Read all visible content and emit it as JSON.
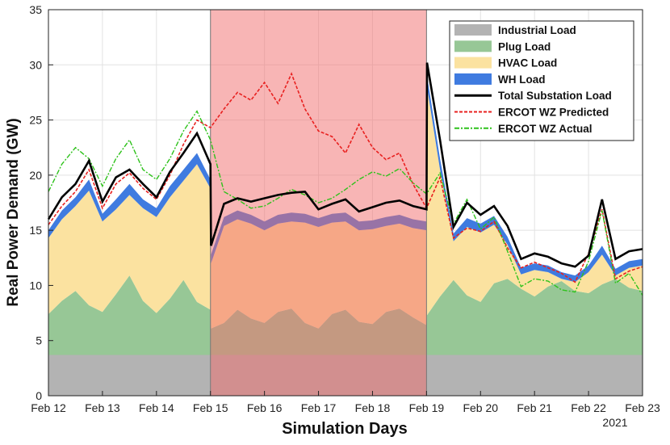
{
  "chart_data": {
    "type": "area",
    "ylabel": "Real Power Demand (GW)",
    "xlabel": "Simulation Days",
    "year_label": "2021",
    "xlim": [
      0,
      11
    ],
    "ylim": [
      0,
      35
    ],
    "grid": true,
    "legend_position": "top-right",
    "x_ticks": [
      {
        "x": 0,
        "label": "Feb 12"
      },
      {
        "x": 1,
        "label": "Feb 13"
      },
      {
        "x": 2,
        "label": "Feb 14"
      },
      {
        "x": 3,
        "label": "Feb 15"
      },
      {
        "x": 4,
        "label": "Feb 16"
      },
      {
        "x": 5,
        "label": "Feb 17"
      },
      {
        "x": 6,
        "label": "Feb 18"
      },
      {
        "x": 7,
        "label": "Feb 19"
      },
      {
        "x": 8,
        "label": "Feb 20"
      },
      {
        "x": 9,
        "label": "Feb 21"
      },
      {
        "x": 10,
        "label": "Feb 22"
      },
      {
        "x": 11,
        "label": "Feb 23"
      }
    ],
    "y_ticks": [
      0,
      5,
      10,
      15,
      20,
      25,
      30,
      35
    ],
    "highlight_band": {
      "x_start": 3,
      "x_end": 7,
      "color": "#f26b6b",
      "opacity": 0.5
    },
    "legend": [
      {
        "key": "industrial",
        "label": "Industrial Load",
        "style": "patch",
        "color": "#b3b3b3"
      },
      {
        "key": "plug",
        "label": "Plug Load",
        "style": "patch",
        "color": "#97c796"
      },
      {
        "key": "hvac",
        "label": "HVAC Load",
        "style": "patch",
        "color": "#fbe2a0"
      },
      {
        "key": "wh",
        "label": "WH Load",
        "style": "patch",
        "color": "#3f7be0"
      },
      {
        "key": "total",
        "label": "Total Substation Load",
        "style": "line",
        "color": "#000000",
        "dash": "none"
      },
      {
        "key": "pred",
        "label": "ERCOT WZ Predicted",
        "style": "line",
        "color": "#e8201f",
        "dash": "4,2"
      },
      {
        "key": "actual",
        "label": "ERCOT WZ Actual",
        "style": "line",
        "color": "#2ec21b",
        "dash": "6,2,2,2"
      }
    ],
    "series": [
      {
        "name": "Industrial Load",
        "constant": 3.7
      },
      {
        "name": "Plug Load (stack top)",
        "x": [
          0,
          0.25,
          0.5,
          0.75,
          1,
          1.25,
          1.5,
          1.75,
          2,
          2.25,
          2.5,
          2.75,
          3,
          3.01,
          3.25,
          3.5,
          3.75,
          4,
          4.25,
          4.5,
          4.75,
          5,
          5.25,
          5.5,
          5.75,
          6,
          6.25,
          6.5,
          6.75,
          7,
          7.01,
          7.25,
          7.5,
          7.75,
          8,
          8.25,
          8.5,
          8.75,
          9,
          9.25,
          9.5,
          9.75,
          10,
          10.25,
          10.5,
          10.75,
          11
        ],
        "values": [
          7.4,
          8.6,
          9.5,
          8.2,
          7.6,
          9.2,
          10.9,
          8.6,
          7.5,
          8.8,
          10.5,
          8.5,
          7.8,
          6.1,
          6.6,
          7.8,
          7.0,
          6.6,
          7.6,
          7.9,
          6.6,
          6.1,
          7.4,
          7.8,
          6.7,
          6.5,
          7.6,
          7.9,
          7.1,
          6.4,
          7.3,
          9.0,
          10.5,
          9.1,
          8.5,
          10.2,
          10.6,
          9.7,
          9.0,
          9.9,
          10.4,
          9.5,
          9.3,
          10.1,
          10.6,
          9.8,
          9.5
        ]
      },
      {
        "name": "HVAC Load (stack top)",
        "x": [
          0,
          0.25,
          0.5,
          0.75,
          1,
          1.25,
          1.5,
          1.75,
          2,
          2.25,
          2.5,
          2.75,
          3,
          3.01,
          3.25,
          3.5,
          3.75,
          4,
          4.25,
          4.5,
          4.75,
          5,
          5.25,
          5.5,
          5.75,
          6,
          6.25,
          6.5,
          6.75,
          7,
          7.01,
          7.25,
          7.5,
          7.75,
          8,
          8.25,
          8.5,
          8.75,
          9,
          9.25,
          9.5,
          9.75,
          10,
          10.25,
          10.5,
          10.75,
          11
        ],
        "values": [
          14.3,
          16.0,
          17.2,
          18.6,
          15.8,
          16.9,
          18.2,
          17.0,
          16.2,
          18.0,
          19.5,
          21.0,
          18.8,
          12.0,
          15.4,
          16.0,
          15.6,
          15.0,
          15.6,
          15.8,
          15.7,
          15.3,
          15.7,
          15.8,
          15.0,
          15.1,
          15.4,
          15.6,
          15.2,
          15.0,
          28.0,
          20.5,
          14.0,
          15.3,
          14.8,
          15.5,
          13.7,
          11.0,
          11.4,
          11.2,
          10.6,
          10.3,
          11.2,
          12.8,
          10.9,
          11.6,
          11.8
        ]
      },
      {
        "name": "WH Load (stack top)",
        "x": [
          0,
          0.25,
          0.5,
          0.75,
          1,
          1.25,
          1.5,
          1.75,
          2,
          2.25,
          2.5,
          2.75,
          3,
          3.01,
          3.25,
          3.5,
          3.75,
          4,
          4.25,
          4.5,
          4.75,
          5,
          5.25,
          5.5,
          5.75,
          6,
          6.25,
          6.5,
          6.75,
          7,
          7.01,
          7.25,
          7.5,
          7.75,
          8,
          8.25,
          8.5,
          8.75,
          9,
          9.25,
          9.5,
          9.75,
          10,
          10.25,
          10.5,
          10.75,
          11
        ],
        "values": [
          15.0,
          16.8,
          18.0,
          19.6,
          16.5,
          17.8,
          19.2,
          17.8,
          17.0,
          19.0,
          20.5,
          22.0,
          19.6,
          12.8,
          16.2,
          16.8,
          16.4,
          15.8,
          16.4,
          16.6,
          16.5,
          16.1,
          16.5,
          16.6,
          15.8,
          15.9,
          16.2,
          16.4,
          16.0,
          15.8,
          29.0,
          21.5,
          14.7,
          16.1,
          15.6,
          16.3,
          14.4,
          11.6,
          12.0,
          11.8,
          11.2,
          10.9,
          11.8,
          13.6,
          11.5,
          12.2,
          12.4
        ]
      },
      {
        "name": "Total Substation Load",
        "x": [
          0,
          0.25,
          0.5,
          0.75,
          1,
          1.25,
          1.5,
          1.75,
          2,
          2.25,
          2.5,
          2.75,
          3,
          3.01,
          3.25,
          3.5,
          3.75,
          4,
          4.25,
          4.5,
          4.75,
          5,
          5.25,
          5.5,
          5.75,
          6,
          6.25,
          6.5,
          6.75,
          7,
          7.01,
          7.25,
          7.5,
          7.75,
          8,
          8.25,
          8.5,
          8.75,
          9,
          9.25,
          9.5,
          9.75,
          10,
          10.25,
          10.5,
          10.75,
          11
        ],
        "values": [
          16.0,
          18.0,
          19.2,
          21.3,
          17.6,
          19.8,
          20.5,
          19.2,
          18.0,
          20.3,
          22.0,
          23.8,
          21.0,
          13.6,
          17.4,
          17.9,
          17.6,
          17.9,
          18.2,
          18.4,
          18.5,
          16.9,
          17.4,
          17.8,
          16.7,
          17.1,
          17.5,
          17.7,
          17.2,
          16.9,
          30.2,
          23.2,
          15.3,
          17.5,
          16.4,
          17.2,
          15.4,
          12.4,
          12.9,
          12.6,
          12.0,
          11.7,
          12.7,
          17.8,
          12.4,
          13.1,
          13.3
        ]
      },
      {
        "name": "ERCOT WZ Predicted",
        "x": [
          0,
          0.25,
          0.5,
          0.75,
          1,
          1.25,
          1.5,
          1.75,
          2,
          2.25,
          2.5,
          2.75,
          3,
          3.25,
          3.5,
          3.75,
          4,
          4.25,
          4.5,
          4.75,
          5,
          5.25,
          5.5,
          5.75,
          6,
          6.25,
          6.5,
          6.75,
          7,
          7.25,
          7.5,
          7.75,
          8,
          8.25,
          8.5,
          8.75,
          9,
          9.25,
          9.5,
          9.75,
          10,
          10.25,
          10.5,
          10.75,
          11
        ],
        "values": [
          15.5,
          17.2,
          18.5,
          20.5,
          17.0,
          19.2,
          20.2,
          18.8,
          17.8,
          20.0,
          22.8,
          25.0,
          24.3,
          26.0,
          27.5,
          26.8,
          28.4,
          26.5,
          29.2,
          26.0,
          24.0,
          23.5,
          22.0,
          24.6,
          22.5,
          21.4,
          22.0,
          19.2,
          17.0,
          19.8,
          14.3,
          15.2,
          14.9,
          15.8,
          13.4,
          11.6,
          12.1,
          11.6,
          11.1,
          10.3,
          12.9,
          16.9,
          10.6,
          11.3,
          11.7
        ]
      },
      {
        "name": "ERCOT WZ Actual",
        "x": [
          0,
          0.25,
          0.5,
          0.75,
          1,
          1.25,
          1.5,
          1.75,
          2,
          2.25,
          2.5,
          2.75,
          3,
          3.25,
          3.5,
          3.75,
          4,
          4.25,
          4.5,
          4.75,
          5,
          5.25,
          5.5,
          5.75,
          6,
          6.25,
          6.5,
          6.75,
          7,
          7.25,
          7.5,
          7.75,
          8,
          8.25,
          8.5,
          8.75,
          9,
          9.25,
          9.5,
          9.75,
          10,
          10.25,
          10.5,
          10.75,
          11
        ],
        "values": [
          18.5,
          21.0,
          22.5,
          21.5,
          19.0,
          21.5,
          23.2,
          20.5,
          19.6,
          21.5,
          24.0,
          25.8,
          23.2,
          18.5,
          17.8,
          17.0,
          17.2,
          17.9,
          18.7,
          18.2,
          17.5,
          17.9,
          18.7,
          19.6,
          20.3,
          19.9,
          20.6,
          19.3,
          18.3,
          20.2,
          15.6,
          17.8,
          15.1,
          16.2,
          13.1,
          9.9,
          10.6,
          10.4,
          9.6,
          9.4,
          12.2,
          16.8,
          10.2,
          11.1,
          9.1
        ]
      }
    ]
  }
}
